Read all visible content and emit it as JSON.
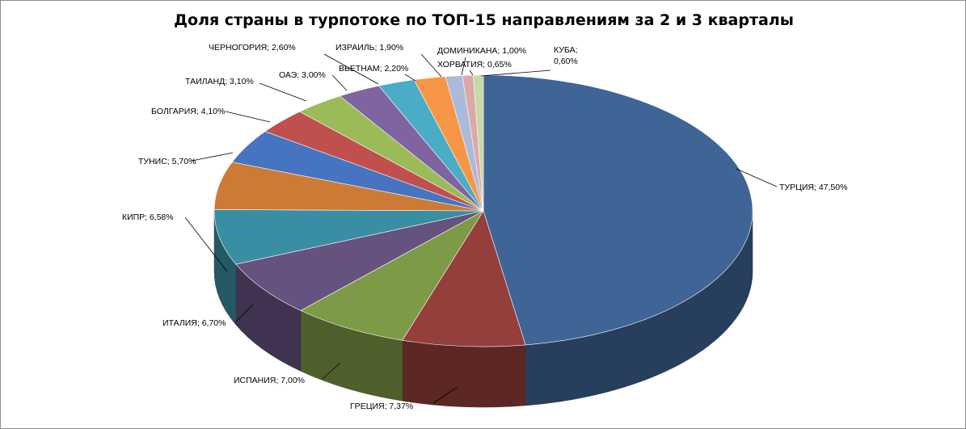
{
  "chart_data": {
    "type": "pie",
    "title": "Доля страны в турпотоке по ТОП-15  направлениям за 2 и 3 кварталы",
    "slices": [
      {
        "name": "ТУРЦИЯ",
        "value": 47.5,
        "label": "ТУРЦИЯ; 47,50%",
        "color": "#3f6496"
      },
      {
        "name": "ГРЕЦИЯ",
        "value": 7.37,
        "label": "ГРЕЦИЯ; 7,37%",
        "color": "#943f3c"
      },
      {
        "name": "ИСПАНИЯ",
        "value": 7.0,
        "label": "ИСПАНИЯ; 7,00%",
        "color": "#7d9a47"
      },
      {
        "name": "ИТАЛИЯ",
        "value": 6.7,
        "label": "ИТАЛИЯ; 6,70%",
        "color": "#65527f"
      },
      {
        "name": "КИПР",
        "value": 6.58,
        "label": "КИПР; 6,58%",
        "color": "#3a8ea3"
      },
      {
        "name": "ТУНИС",
        "value": 5.7,
        "label": "ТУНИС; 5,70%",
        "color": "#cd7a36"
      },
      {
        "name": "БОЛГАРИЯ",
        "value": 4.1,
        "label": "БОЛГАРИЯ; 4,10%",
        "color": "#4674c0"
      },
      {
        "name": "ТАИЛАНД",
        "value": 3.1,
        "label": "ТАИЛАНД; 3,10%",
        "color": "#c0504d"
      },
      {
        "name": "ОАЭ",
        "value": 3.0,
        "label": "ОАЭ; 3,00%",
        "color": "#9bbb59"
      },
      {
        "name": "ЧЕРНОГОРИЯ",
        "value": 2.6,
        "label": "ЧЕРНОГОРИЯ; 2,60%",
        "color": "#8064a2"
      },
      {
        "name": "ВЬЕТНАМ",
        "value": 2.2,
        "label": "ВЬЕТНАМ; 2,20%",
        "color": "#4bacc6"
      },
      {
        "name": "ИЗРАИЛЬ",
        "value": 1.9,
        "label": "ИЗРАИЛЬ; 1,90%",
        "color": "#f79646"
      },
      {
        "name": "ДОМИНИКАНА",
        "value": 1.0,
        "label": "ДОМИНИКАНА; 1,00%",
        "color": "#aabadb"
      },
      {
        "name": "ХОРВАТИЯ",
        "value": 0.65,
        "label": "ХОРВАТИЯ; 0,65%",
        "color": "#dca9a8"
      },
      {
        "name": "КУБА",
        "value": 0.6,
        "label_lines": [
          "КУБА;",
          "0,60%"
        ],
        "color": "#c8d8a8"
      }
    ],
    "legend": "none"
  }
}
